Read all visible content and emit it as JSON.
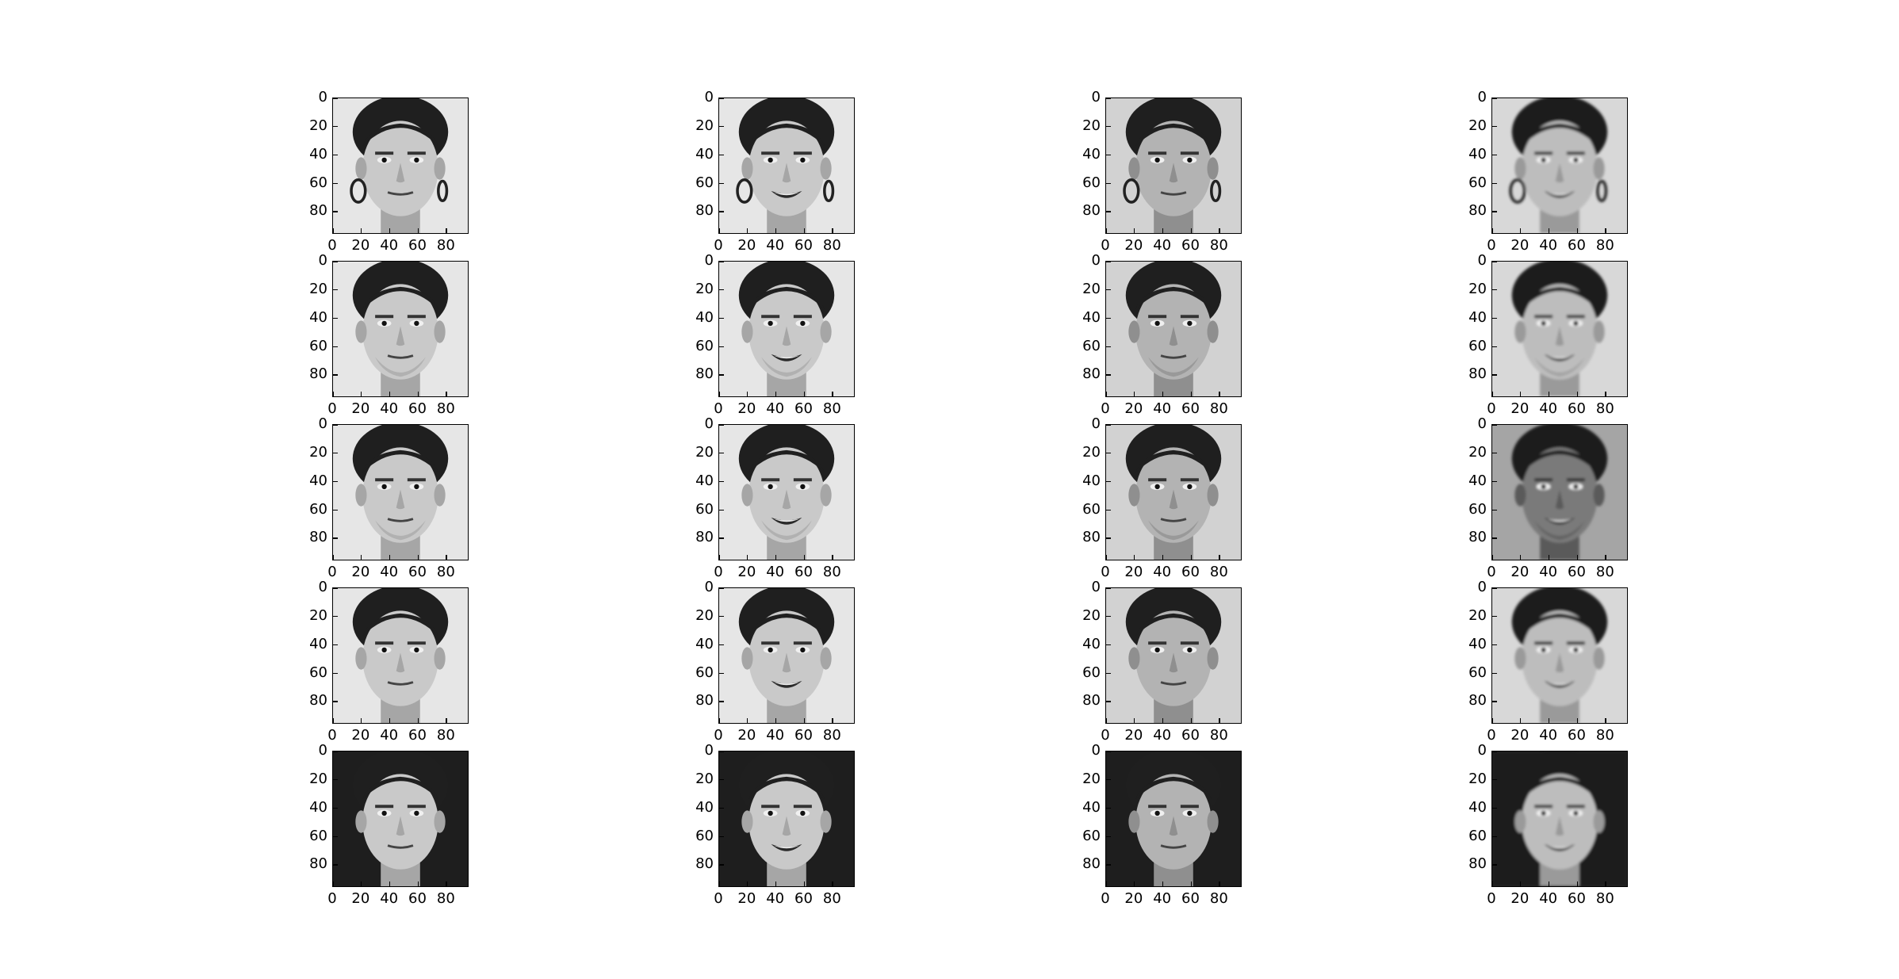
{
  "figure": {
    "rows": 5,
    "cols": 4,
    "image_size": [
      96,
      96
    ],
    "colormap": "gray",
    "x_tick_labels": [
      "0",
      "20",
      "40",
      "60",
      "80"
    ],
    "y_tick_labels": [
      "0",
      "20",
      "40",
      "60",
      "80"
    ],
    "tick_values": [
      0,
      20,
      40,
      60,
      80
    ],
    "panels": [
      {
        "row": 0,
        "col": 0,
        "subject": "woman-with-earrings",
        "expression": "neutral",
        "tone": "light",
        "hair": "dark-pulled-back"
      },
      {
        "row": 0,
        "col": 1,
        "subject": "woman-with-earrings",
        "expression": "smiling",
        "tone": "light",
        "hair": "dark-pulled-back"
      },
      {
        "row": 0,
        "col": 2,
        "subject": "woman-with-earrings",
        "expression": "neutral",
        "tone": "medium",
        "hair": "dark-pulled-back"
      },
      {
        "row": 0,
        "col": 3,
        "subject": "woman-with-earrings",
        "expression": "smiling-reconstruction",
        "tone": "blurred",
        "hair": "dark-pulled-back"
      },
      {
        "row": 1,
        "col": 0,
        "subject": "man-short-hair",
        "expression": "neutral",
        "tone": "light",
        "hair": "dark-short"
      },
      {
        "row": 1,
        "col": 1,
        "subject": "man-short-hair",
        "expression": "smiling",
        "tone": "light",
        "hair": "dark-short"
      },
      {
        "row": 1,
        "col": 2,
        "subject": "man-short-hair",
        "expression": "neutral",
        "tone": "medium",
        "hair": "dark-short"
      },
      {
        "row": 1,
        "col": 3,
        "subject": "man-short-hair",
        "expression": "smiling-reconstruction",
        "tone": "blurred",
        "hair": "dark-short"
      },
      {
        "row": 2,
        "col": 0,
        "subject": "man-beard",
        "expression": "neutral",
        "tone": "light",
        "hair": "dark-short"
      },
      {
        "row": 2,
        "col": 1,
        "subject": "man-beard",
        "expression": "smiling",
        "tone": "light",
        "hair": "dark-short"
      },
      {
        "row": 2,
        "col": 2,
        "subject": "man-beard",
        "expression": "neutral",
        "tone": "medium",
        "hair": "dark-short"
      },
      {
        "row": 2,
        "col": 3,
        "subject": "man-beard",
        "expression": "smiling-reconstruction",
        "tone": "dark",
        "hair": "dark-short"
      },
      {
        "row": 3,
        "col": 0,
        "subject": "man-dark-hair",
        "expression": "neutral",
        "tone": "light",
        "hair": "dark-short"
      },
      {
        "row": 3,
        "col": 1,
        "subject": "man-dark-hair",
        "expression": "smiling",
        "tone": "light",
        "hair": "dark-short"
      },
      {
        "row": 3,
        "col": 2,
        "subject": "man-dark-hair",
        "expression": "neutral",
        "tone": "medium",
        "hair": "dark-short"
      },
      {
        "row": 3,
        "col": 3,
        "subject": "man-dark-hair",
        "expression": "smiling-reconstruction",
        "tone": "blurred",
        "hair": "dark-short"
      },
      {
        "row": 4,
        "col": 0,
        "subject": "woman-long-hair",
        "expression": "neutral",
        "tone": "light",
        "hair": "dark-long"
      },
      {
        "row": 4,
        "col": 1,
        "subject": "woman-long-hair",
        "expression": "smiling",
        "tone": "light",
        "hair": "dark-long"
      },
      {
        "row": 4,
        "col": 2,
        "subject": "woman-long-hair",
        "expression": "neutral",
        "tone": "medium",
        "hair": "dark-long"
      },
      {
        "row": 4,
        "col": 3,
        "subject": "woman-long-hair",
        "expression": "smiling-reconstruction",
        "tone": "blurred",
        "hair": "dark-long"
      }
    ]
  }
}
